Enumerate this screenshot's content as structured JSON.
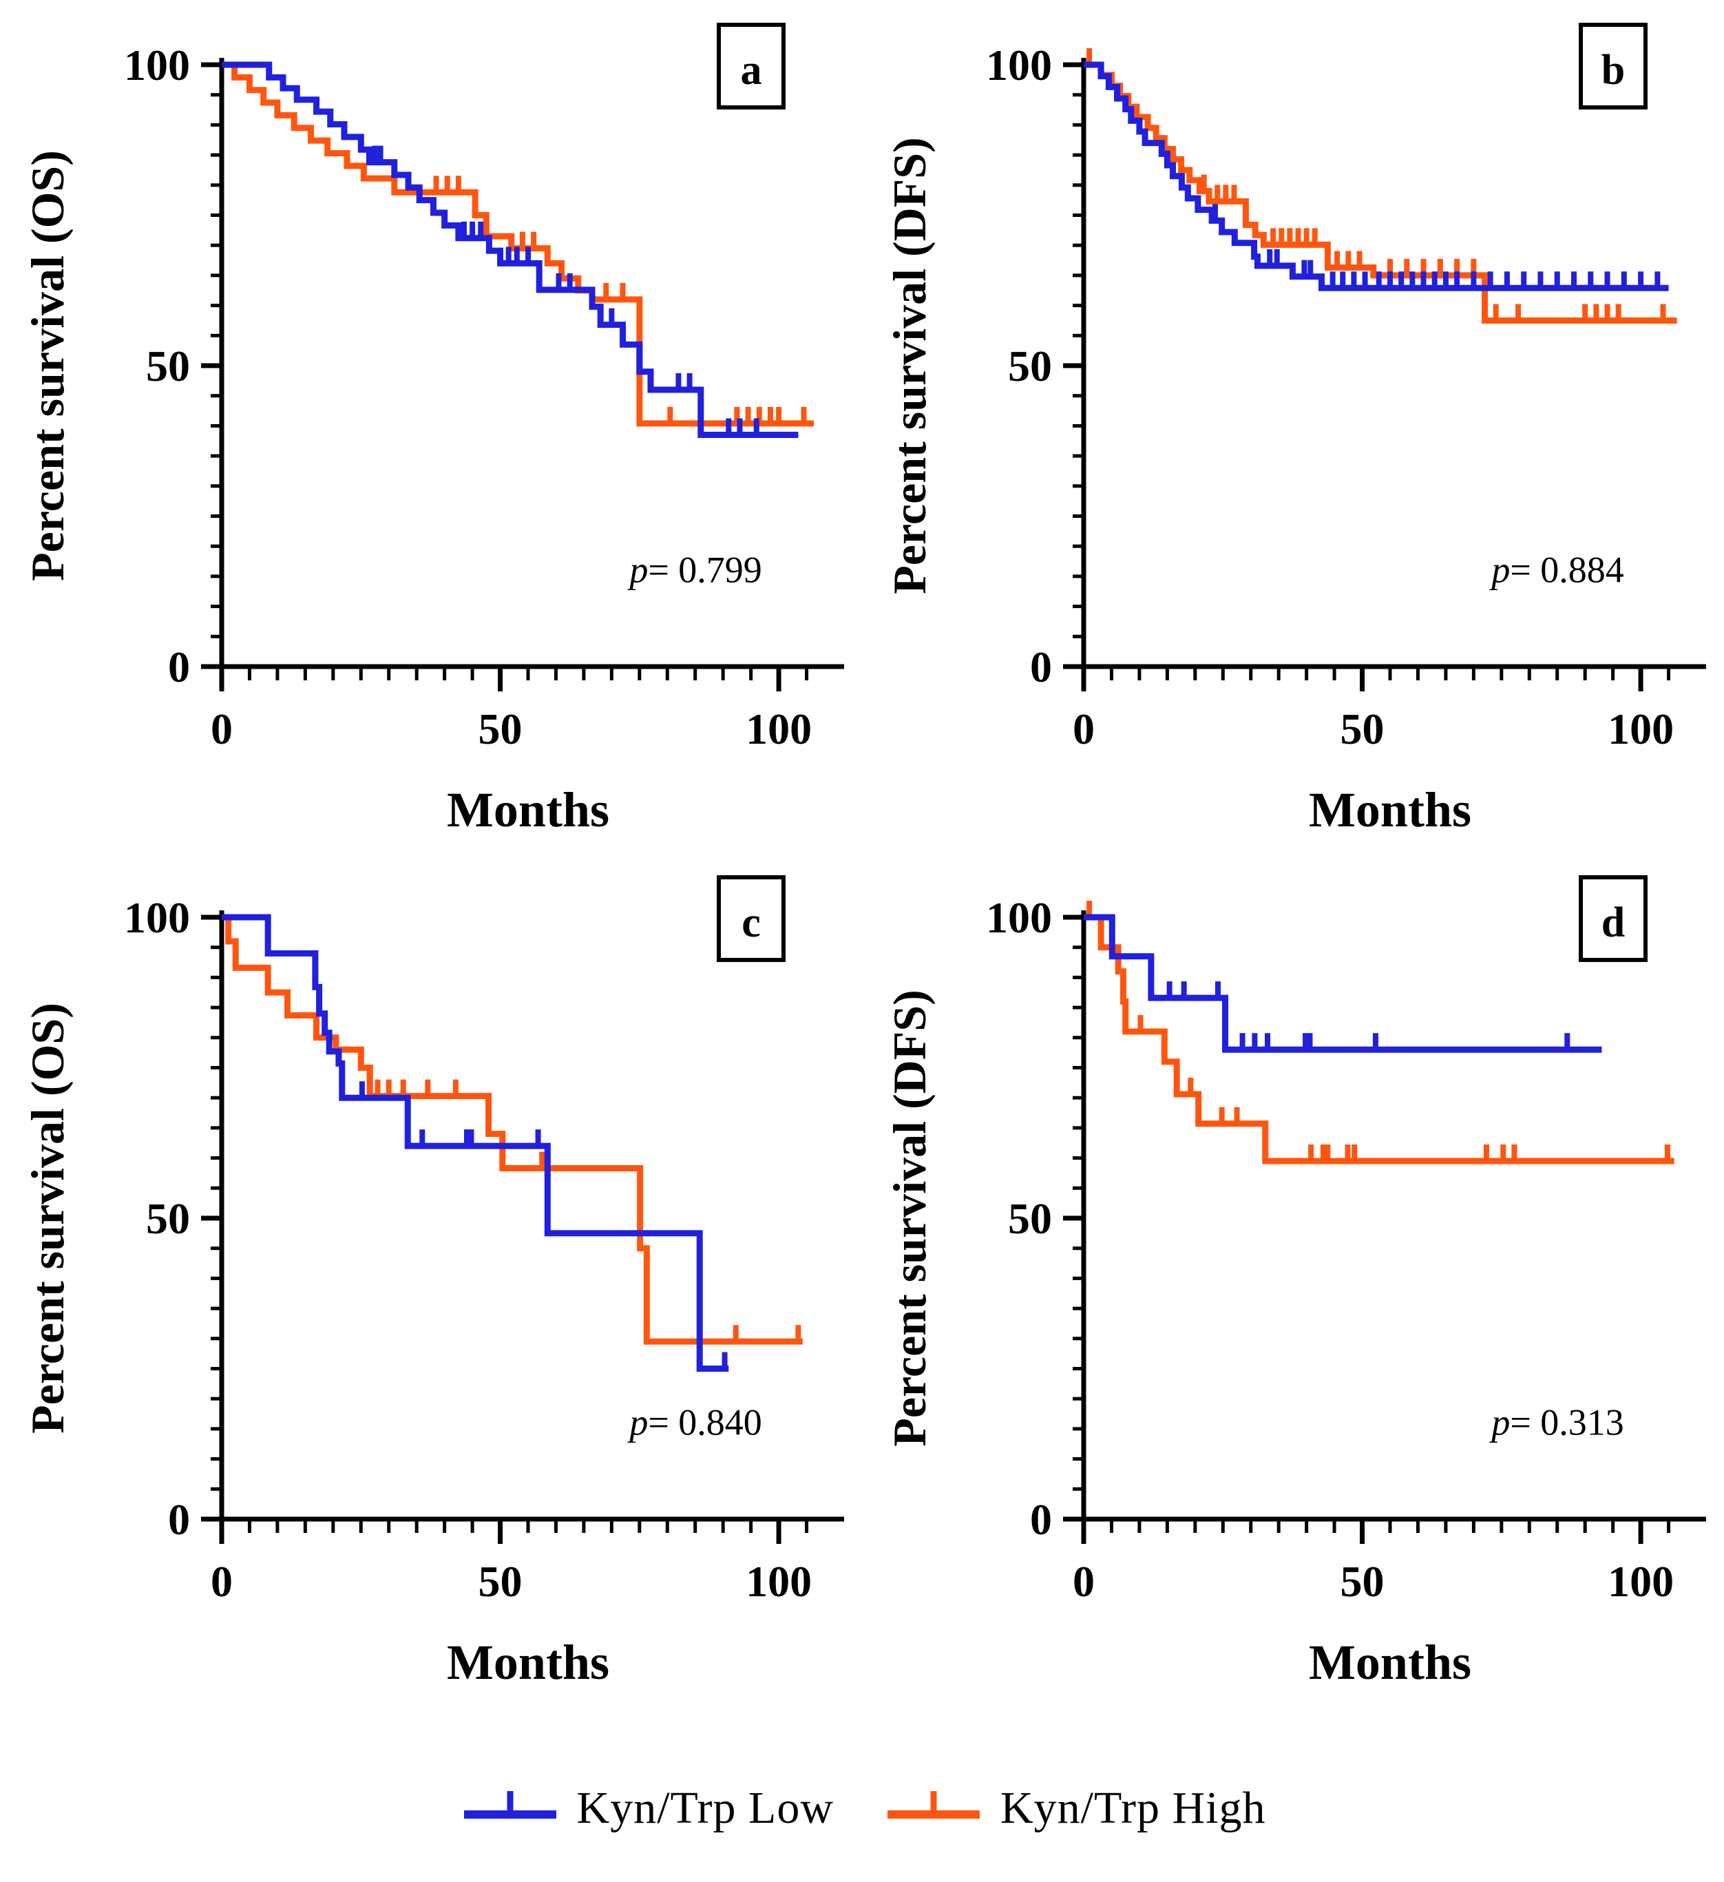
{
  "figure_background": "#ffffff",
  "colors": {
    "low": "#2020dd",
    "high": "#ff560f",
    "axis": "#000000",
    "text": "#000000"
  },
  "legend": {
    "items": [
      {
        "label": "Kyn/Trp Low",
        "color_key": "low",
        "symbol": "censored-line"
      },
      {
        "label": "Kyn/Trp High",
        "color_key": "high",
        "symbol": "censored-line"
      }
    ]
  },
  "axes_labels": {
    "y_ticks": [
      "0",
      "50",
      "100"
    ],
    "x_ticks": [
      "0",
      "50",
      "100"
    ]
  },
  "chart_data": [
    {
      "type": "line",
      "subtype": "kaplan-meier-step",
      "id": "a",
      "box_letter": "a",
      "ylabel": "Percent survival (OS)",
      "xlabel": "Months",
      "p_symbol": "p",
      "p_value": "0.799",
      "xlim": [
        0,
        110
      ],
      "ylim": [
        0,
        100
      ],
      "x_major_ticks": [
        0,
        50,
        100
      ],
      "y_major_ticks": [
        0,
        50,
        100
      ],
      "x_minor_step": 5,
      "y_minor_step": 5,
      "grid": false,
      "series": [
        {
          "name": "Kyn/Trp High",
          "color_key": "high",
          "start": [
            0,
            100
          ],
          "end_month": 106.3,
          "steps": [
            [
              2.3,
              97.9
            ],
            [
              5,
              95.8
            ],
            [
              7.5,
              93.7
            ],
            [
              10,
              91.6
            ],
            [
              13,
              89.5
            ],
            [
              16,
              87.4
            ],
            [
              19,
              85.3
            ],
            [
              22.5,
              83.2
            ],
            [
              25.5,
              81.1
            ],
            [
              31,
              78.8
            ],
            [
              45.5,
              75
            ],
            [
              47.5,
              71.5
            ],
            [
              52,
              69.5
            ],
            [
              58.5,
              67
            ],
            [
              61,
              64.5
            ],
            [
              64,
              62.5
            ],
            [
              66.5,
              61
            ],
            [
              75,
              40.4
            ]
          ],
          "censor_months": [
            38.5,
            40.5,
            42.5,
            54,
            56,
            69,
            72,
            80.5,
            92.5,
            94.5,
            96.5,
            98.5,
            100,
            104.5
          ]
        },
        {
          "name": "Kyn/Trp Low",
          "color_key": "low",
          "start": [
            0,
            100
          ],
          "end_month": 103.5,
          "steps": [
            [
              8.5,
              97.9
            ],
            [
              11,
              96.1
            ],
            [
              13.5,
              94.2
            ],
            [
              17,
              92.2
            ],
            [
              19.5,
              90.1
            ],
            [
              22,
              88
            ],
            [
              25,
              85.9
            ],
            [
              26.5,
              83.8
            ],
            [
              31,
              81.7
            ],
            [
              33.5,
              79.6
            ],
            [
              35.5,
              77.5
            ],
            [
              38,
              75.4
            ],
            [
              40,
              73.3
            ],
            [
              42.5,
              71.2
            ],
            [
              48,
              69.1
            ],
            [
              50,
              67
            ],
            [
              57,
              62.6
            ],
            [
              66.5,
              59.8
            ],
            [
              68,
              56.8
            ],
            [
              72,
              53.5
            ],
            [
              75,
              49
            ],
            [
              77,
              46
            ],
            [
              86,
              38.5
            ]
          ],
          "censor_months": [
            27.5,
            28.5,
            43.5,
            45,
            46.5,
            51.5,
            53,
            55,
            60.5,
            62.5,
            70,
            82,
            84,
            91,
            93,
            96
          ]
        }
      ]
    },
    {
      "type": "line",
      "subtype": "kaplan-meier-step",
      "id": "b",
      "box_letter": "b",
      "ylabel": "Percent survival (DFS)",
      "xlabel": "Months",
      "p_symbol": "p",
      "p_value": "0.884",
      "xlim": [
        0,
        110
      ],
      "ylim": [
        0,
        100
      ],
      "x_major_ticks": [
        0,
        50,
        100
      ],
      "y_major_ticks": [
        0,
        50,
        100
      ],
      "x_minor_step": 5,
      "y_minor_step": 5,
      "grid": false,
      "series": [
        {
          "name": "Kyn/Trp High",
          "color_key": "high",
          "start": [
            0,
            100
          ],
          "end_month": 106.5,
          "steps": [
            [
              3.1,
              98.3
            ],
            [
              5,
              96.5
            ],
            [
              6.5,
              94.8
            ],
            [
              8,
              93
            ],
            [
              9.5,
              91.3
            ],
            [
              11.5,
              89.5
            ],
            [
              13,
              87.8
            ],
            [
              14.5,
              86
            ],
            [
              16,
              84.3
            ],
            [
              17.5,
              82.5
            ],
            [
              19,
              80.8
            ],
            [
              20.8,
              79
            ],
            [
              22.5,
              77.3
            ],
            [
              29.1,
              73.4
            ],
            [
              30.8,
              71.7
            ],
            [
              32.3,
              70.1
            ],
            [
              43.8,
              66.3
            ],
            [
              52,
              65
            ],
            [
              72,
              57.5
            ]
          ],
          "censor_months": [
            1,
            21.6,
            24,
            25.5,
            27,
            34,
            35.5,
            37,
            38.5,
            40,
            41.5,
            45.5,
            47.5,
            49.5,
            55,
            58,
            61,
            64,
            67,
            70,
            74,
            78,
            90,
            92,
            94,
            96,
            104
          ]
        },
        {
          "name": "Kyn/Trp Low",
          "color_key": "low",
          "start": [
            0,
            100
          ],
          "end_month": 105,
          "steps": [
            [
              3.1,
              98.1
            ],
            [
              4.5,
              96.3
            ],
            [
              6,
              94.4
            ],
            [
              7.5,
              92.6
            ],
            [
              8.5,
              90.7
            ],
            [
              10,
              88.9
            ],
            [
              11,
              87
            ],
            [
              14,
              85.2
            ],
            [
              15,
              83.3
            ],
            [
              16,
              81.5
            ],
            [
              17.6,
              79.6
            ],
            [
              18.7,
              77.8
            ],
            [
              20.5,
              75.9
            ],
            [
              23,
              74.1
            ],
            [
              24.8,
              72.2
            ],
            [
              27.1,
              70.4
            ],
            [
              30.6,
              68.1
            ],
            [
              31.2,
              66.6
            ],
            [
              37.5,
              64.8
            ],
            [
              42.7,
              62.9
            ]
          ],
          "censor_months": [
            23.6,
            33.4,
            34.7,
            39.6,
            40.7,
            44.7,
            46.5,
            48.5,
            50.5,
            53,
            55,
            57,
            59,
            61,
            63,
            65,
            67,
            70,
            73,
            76,
            79,
            82,
            85,
            88,
            91,
            94,
            97,
            100,
            103
          ]
        }
      ]
    },
    {
      "type": "line",
      "subtype": "kaplan-meier-step",
      "id": "c",
      "box_letter": "c",
      "ylabel": "Percent survival (OS)",
      "xlabel": "Months",
      "p_symbol": "p",
      "p_value": "0.840",
      "xlim": [
        0,
        110
      ],
      "ylim": [
        0,
        100
      ],
      "x_major_ticks": [
        0,
        50,
        100
      ],
      "y_major_ticks": [
        0,
        50,
        100
      ],
      "x_minor_step": 5,
      "y_minor_step": 5,
      "grid": false,
      "series": [
        {
          "name": "Kyn/Trp High",
          "color_key": "high",
          "start": [
            0,
            100
          ],
          "end_month": 104.3,
          "steps": [
            [
              1.2,
              96
            ],
            [
              2.5,
              91.6
            ],
            [
              8.3,
              87.5
            ],
            [
              11.8,
              83.7
            ],
            [
              17,
              80
            ],
            [
              20.5,
              78
            ],
            [
              25,
              75
            ],
            [
              26.6,
              70.3
            ],
            [
              47.9,
              64
            ],
            [
              50.4,
              58.3
            ],
            [
              75.1,
              45
            ],
            [
              76.3,
              29.5
            ]
          ],
          "censor_months": [
            28,
            30,
            32.6,
            37,
            42,
            57.5,
            92.3,
            103.5
          ]
        },
        {
          "name": "Kyn/Trp Low",
          "color_key": "low",
          "start": [
            0,
            100
          ],
          "end_month": 91,
          "steps": [
            [
              8.3,
              94
            ],
            [
              16.8,
              88.4
            ],
            [
              17.5,
              84
            ],
            [
              18.5,
              80.8
            ],
            [
              19.3,
              77.7
            ],
            [
              21,
              75.7
            ],
            [
              21.6,
              70
            ],
            [
              33.4,
              62
            ],
            [
              58.5,
              47.5
            ],
            [
              85.8,
              25
            ]
          ],
          "censor_months": [
            25.2,
            36,
            44,
            44.8,
            56.8,
            90.3
          ]
        }
      ]
    },
    {
      "type": "line",
      "subtype": "kaplan-meier-step",
      "id": "d",
      "box_letter": "d",
      "ylabel": "Percent survival (DFS)",
      "xlabel": "Months",
      "p_symbol": "p",
      "p_value": "0.313",
      "xlim": [
        0,
        110
      ],
      "ylim": [
        0,
        100
      ],
      "x_major_ticks": [
        0,
        50,
        100
      ],
      "y_major_ticks": [
        0,
        50,
        100
      ],
      "x_minor_step": 5,
      "y_minor_step": 5,
      "grid": false,
      "series": [
        {
          "name": "Kyn/Trp High",
          "color_key": "high",
          "start": [
            0,
            100
          ],
          "end_month": 106,
          "steps": [
            [
              3.1,
              95
            ],
            [
              6.2,
              91
            ],
            [
              7.1,
              86
            ],
            [
              7.5,
              81
            ],
            [
              14.5,
              76
            ],
            [
              16.7,
              70.6
            ],
            [
              20.6,
              65.7
            ],
            [
              32.6,
              59.5
            ]
          ],
          "censor_months": [
            1,
            10.2,
            19.2,
            24.8,
            27.5,
            40.8,
            43,
            43.8,
            47.4,
            48.6,
            72.3,
            75.3,
            77.3,
            104.8
          ]
        },
        {
          "name": "Kyn/Trp Low",
          "color_key": "low",
          "start": [
            0,
            100
          ],
          "end_month": 93,
          "steps": [
            [
              5.1,
              93.5
            ],
            [
              12.1,
              86.6
            ],
            [
              25.4,
              78
            ]
          ],
          "censor_months": [
            15.4,
            18,
            24.1,
            28.5,
            30.7,
            33,
            39.8,
            40.6,
            52.4,
            86.8
          ]
        }
      ]
    }
  ]
}
